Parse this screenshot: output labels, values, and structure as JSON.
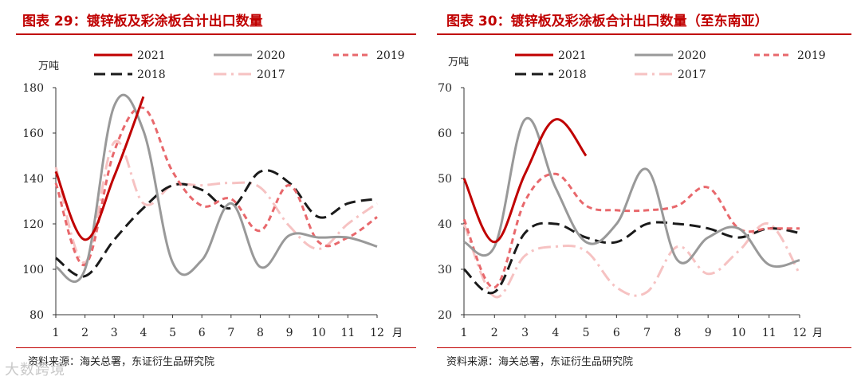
{
  "colors": {
    "title": "#c00000",
    "s2021": "#c00000",
    "s2020": "#999999",
    "s2019": "#e8686c",
    "s2018": "#1a1a1a",
    "s2017": "#f6c2c2"
  },
  "watermark": "大数跨境",
  "chart_data": [
    {
      "type": "line",
      "title": "图表 29：镀锌板及彩涂板合计出口数量",
      "source": "资料来源：海关总署，东证衍生品研究院",
      "ylabel": "万吨",
      "xlabel": "月",
      "ylim": [
        80,
        180
      ],
      "yticks": [
        "80",
        "100",
        "120",
        "140",
        "160",
        "180"
      ],
      "categories": [
        "1",
        "2",
        "3",
        "4",
        "5",
        "6",
        "7",
        "8",
        "9",
        "10",
        "11",
        "12"
      ],
      "series": [
        {
          "name": "2021",
          "values": [
            143,
            113,
            141,
            176,
            null,
            null,
            null,
            null,
            null,
            null,
            null,
            null
          ]
        },
        {
          "name": "2020",
          "values": [
            101,
            100,
            172,
            161,
            103,
            104,
            129,
            101,
            115,
            114,
            114,
            110
          ]
        },
        {
          "name": "2019",
          "values": [
            138,
            102,
            152,
            171,
            143,
            128,
            131,
            117,
            137,
            112,
            114,
            123
          ]
        },
        {
          "name": "2018",
          "values": [
            105,
            97,
            113,
            127,
            137,
            135,
            127,
            143,
            138,
            123,
            129,
            131
          ]
        },
        {
          "name": "2017",
          "values": [
            145,
            103,
            156,
            129,
            137,
            137,
            138,
            136,
            119,
            109,
            120,
            129
          ]
        }
      ]
    },
    {
      "type": "line",
      "title": "图表 30：镀锌板及彩涂板合计出口数量（至东南亚）",
      "source": "资料来源：海关总署，东证衍生品研究院",
      "ylabel": "万吨",
      "xlabel": "月",
      "ylim": [
        20,
        70
      ],
      "yticks": [
        "20",
        "30",
        "40",
        "50",
        "60",
        "70"
      ],
      "categories": [
        "1",
        "2",
        "3",
        "4",
        "5",
        "6",
        "7",
        "8",
        "9",
        "10",
        "11",
        "12"
      ],
      "series": [
        {
          "name": "2021",
          "values": [
            50,
            36,
            51,
            63,
            55,
            null,
            null,
            null,
            null,
            null,
            null,
            null
          ]
        },
        {
          "name": "2020",
          "values": [
            36,
            35,
            63,
            48,
            36,
            40,
            52,
            32,
            37,
            39,
            31,
            32
          ]
        },
        {
          "name": "2019",
          "values": [
            41,
            26,
            45,
            51,
            44,
            43,
            43,
            44,
            48,
            39,
            39,
            39
          ]
        },
        {
          "name": "2018",
          "values": [
            30,
            25,
            38,
            40,
            37,
            36,
            40,
            40,
            39,
            37,
            39,
            38
          ]
        },
        {
          "name": "2017",
          "values": [
            40,
            24,
            33,
            35,
            34,
            26,
            25,
            35,
            29,
            34,
            40,
            29
          ]
        }
      ]
    }
  ]
}
